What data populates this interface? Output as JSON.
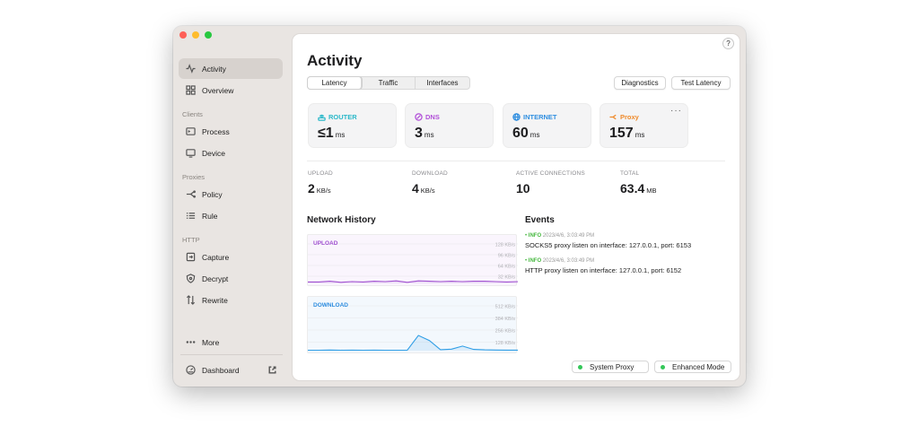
{
  "sidebar": {
    "items": [
      {
        "label": "Activity",
        "icon": "activity-icon"
      },
      {
        "label": "Overview",
        "icon": "grid-icon"
      },
      {
        "label": "Process",
        "icon": "terminal-icon"
      },
      {
        "label": "Device",
        "icon": "monitor-icon"
      },
      {
        "label": "Policy",
        "icon": "branch-icon"
      },
      {
        "label": "Rule",
        "icon": "list-icon"
      },
      {
        "label": "Capture",
        "icon": "capture-icon"
      },
      {
        "label": "Decrypt",
        "icon": "shield-icon"
      },
      {
        "label": "Rewrite",
        "icon": "rewrite-icon"
      },
      {
        "label": "More",
        "icon": "ellipsis-icon"
      },
      {
        "label": "Dashboard",
        "icon": "gauge-icon"
      }
    ],
    "sections": [
      "Clients",
      "Proxies",
      "HTTP"
    ]
  },
  "main": {
    "help_label": "?",
    "title": "Activity",
    "tabs": [
      "Latency",
      "Traffic",
      "Interfaces"
    ],
    "buttons": {
      "diagnostics": "Diagnostics",
      "test_latency": "Test Latency"
    },
    "cards": [
      {
        "label": "ROUTER",
        "value": "≤1",
        "unit": "ms",
        "color": "#2ab8c9"
      },
      {
        "label": "DNS",
        "value": "3",
        "unit": "ms",
        "color": "#b14fd8"
      },
      {
        "label": "INTERNET",
        "value": "60",
        "unit": "ms",
        "color": "#2f8ee0"
      },
      {
        "label": "Proxy",
        "value": "157",
        "unit": "ms",
        "color": "#ef8a2a",
        "more": "···"
      }
    ],
    "stats": [
      {
        "label": "UPLOAD",
        "value": "2",
        "unit": "KB/s"
      },
      {
        "label": "DOWNLOAD",
        "value": "4",
        "unit": "KB/s"
      },
      {
        "label": "ACTIVE CONNECTIONS",
        "value": "10",
        "unit": ""
      },
      {
        "label": "TOTAL",
        "value": "63.4",
        "unit": "MB"
      }
    ],
    "network_history": {
      "title": "Network History",
      "upload": {
        "label": "UPLOAD",
        "color": "#a050d0",
        "ticks": [
          "128 KB/s",
          "96 KB/s",
          "64 KB/s",
          "32 KB/s"
        ],
        "max": 128,
        "values": [
          4,
          4,
          6,
          3,
          5,
          4,
          6,
          5,
          7,
          3,
          7,
          6,
          5,
          6,
          5,
          6,
          6,
          5,
          4,
          5
        ]
      },
      "download": {
        "label": "DOWNLOAD",
        "color": "#2f9ee6",
        "ticks": [
          "512 KB/s",
          "384 KB/s",
          "256 KB/s",
          "128 KB/s"
        ],
        "max": 512,
        "values": [
          4,
          4,
          6,
          4,
          5,
          4,
          5,
          4,
          4,
          4,
          150,
          100,
          10,
          15,
          45,
          12,
          8,
          6,
          5,
          5
        ]
      }
    },
    "events": {
      "title": "Events",
      "items": [
        {
          "level": "INFO",
          "time": "2023/4/6, 3:03:49 PM",
          "message": "SOCKS5 proxy listen on interface: 127.0.0.1, port: 6153"
        },
        {
          "level": "INFO",
          "time": "2023/4/6, 3:03:49 PM",
          "message": "HTTP proxy listen on interface: 127.0.0.1, port: 6152"
        }
      ]
    },
    "toggles": {
      "system_proxy": "System Proxy",
      "enhanced_mode": "Enhanced Mode"
    }
  }
}
